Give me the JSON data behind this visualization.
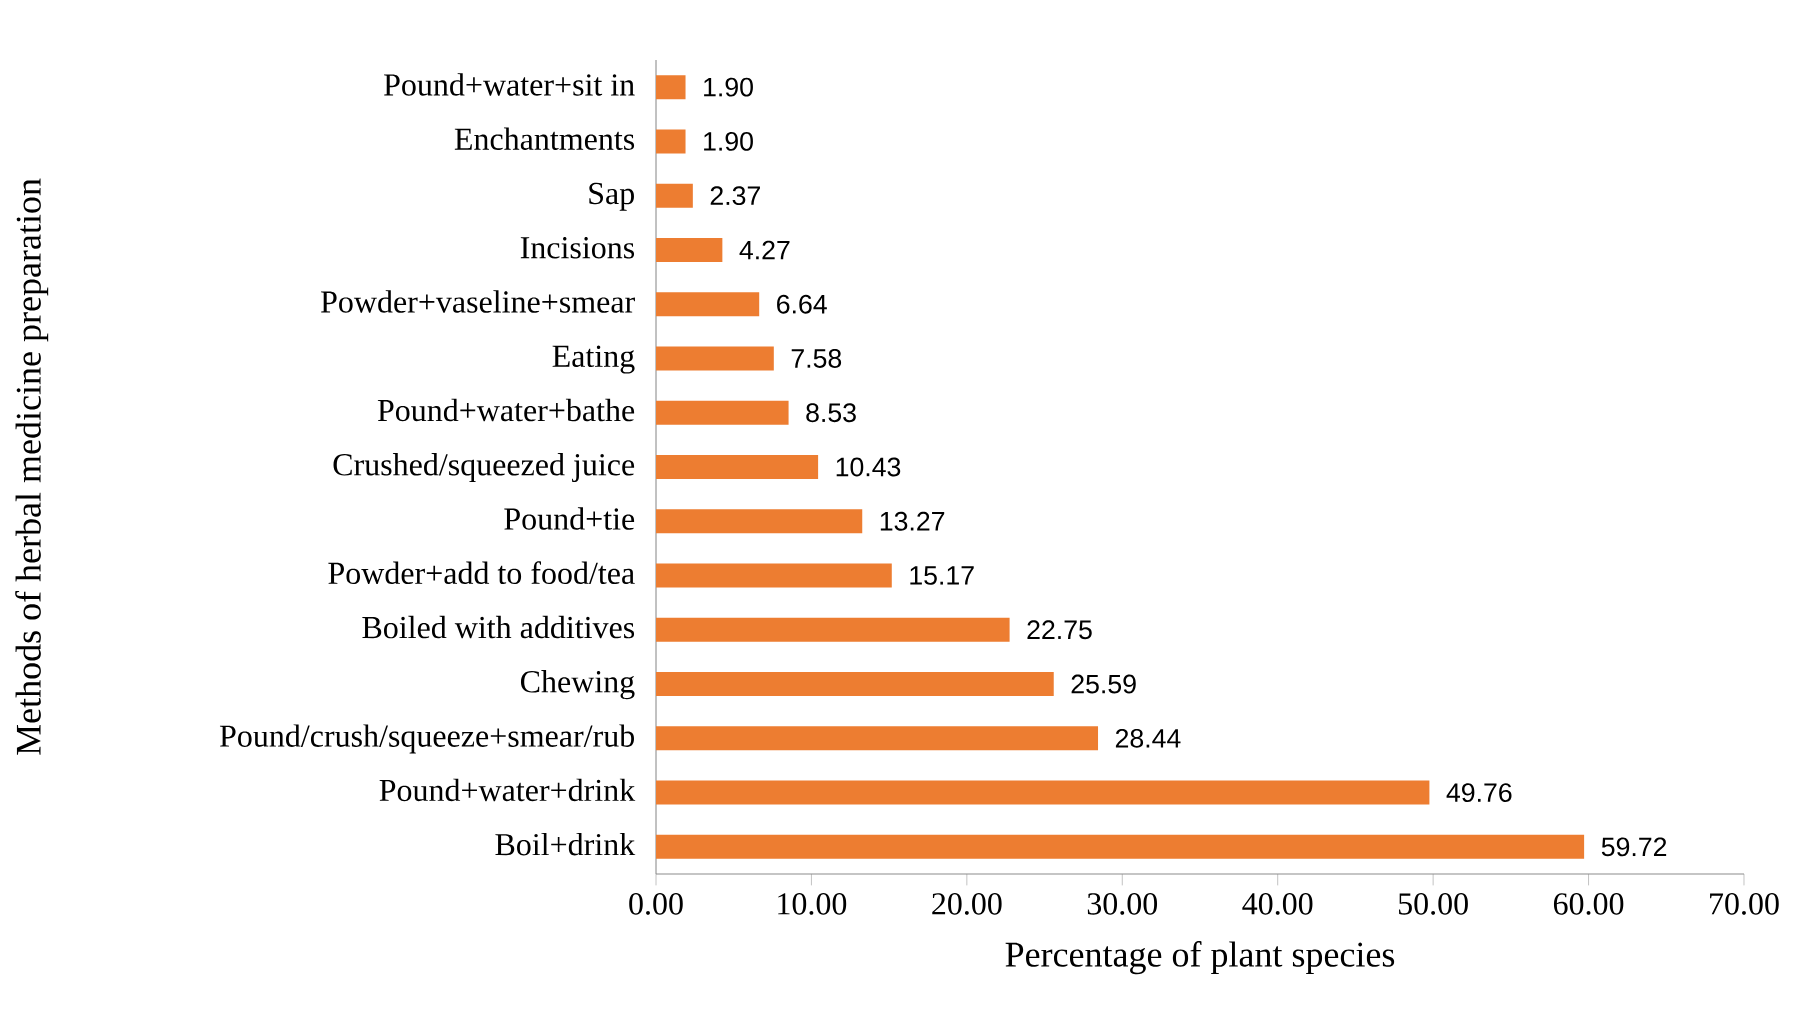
{
  "chart_data": {
    "type": "bar",
    "orientation": "horizontal",
    "xlabel": "Percentage of plant species",
    "ylabel": "Methods of herbal medicine preparation",
    "categories": [
      "Pound+water+sit in",
      "Enchantments",
      "Sap",
      "Incisions",
      "Powder+vaseline+smear",
      "Eating",
      "Pound+water+bathe",
      "Crushed/squeezed juice",
      "Pound+tie",
      "Powder+add to food/tea",
      "Boiled with additives",
      "Chewing",
      "Pound/crush/squeeze+smear/rub",
      "Pound+water+drink",
      "Boil+drink"
    ],
    "values": [
      1.9,
      1.9,
      2.37,
      4.27,
      6.64,
      7.58,
      8.53,
      10.43,
      13.27,
      15.17,
      22.75,
      25.59,
      28.44,
      49.76,
      59.72
    ],
    "value_labels": [
      "1.90",
      "1.90",
      "2.37",
      "4.27",
      "6.64",
      "7.58",
      "8.53",
      "10.43",
      "13.27",
      "15.17",
      "22.75",
      "25.59",
      "28.44",
      "49.76",
      "59.72"
    ],
    "color": "#ed7d31",
    "xlim": [
      0,
      70
    ],
    "xticks": [
      {
        "value": 0,
        "label": "0.00"
      },
      {
        "value": 10,
        "label": "10.00"
      },
      {
        "value": 20,
        "label": "20.00"
      },
      {
        "value": 30,
        "label": "30.00"
      },
      {
        "value": 40,
        "label": "40.00"
      },
      {
        "value": 50,
        "label": "50.00"
      },
      {
        "value": 60,
        "label": "60.00"
      },
      {
        "value": 70,
        "label": "70.00"
      }
    ],
    "grid": false
  }
}
